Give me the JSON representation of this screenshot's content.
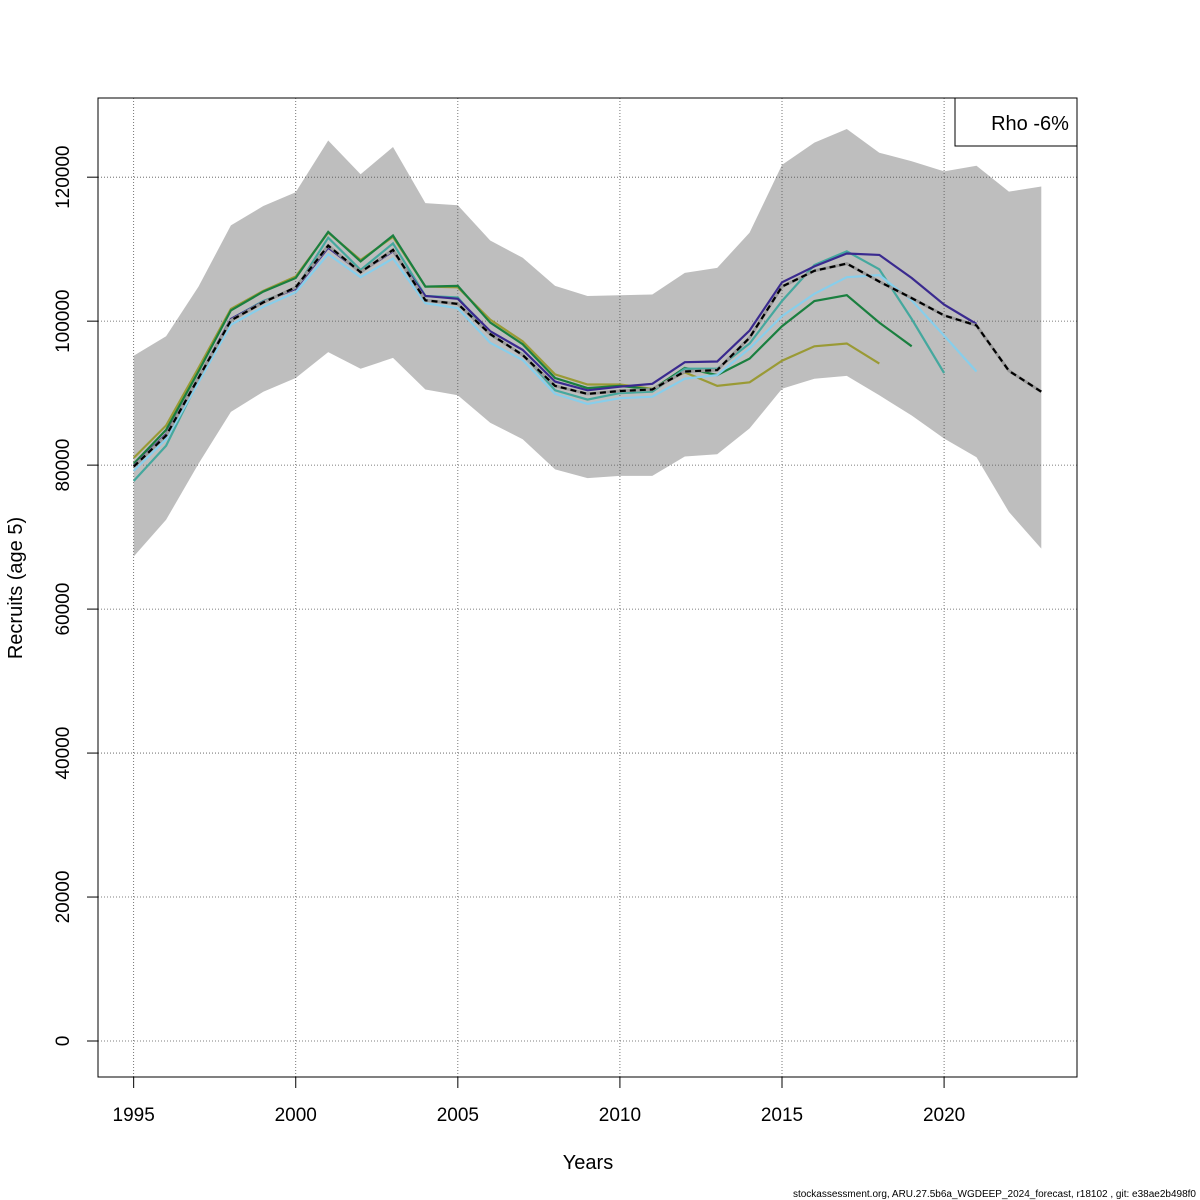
{
  "chart_data": {
    "type": "line",
    "xlabel": "Years",
    "ylabel": "Recruits (age 5)",
    "xlim": [
      1993.9,
      2024.1
    ],
    "ylim": [
      -5000,
      131000
    ],
    "x_ticks": [
      1995,
      2000,
      2005,
      2010,
      2015,
      2020
    ],
    "y_ticks": [
      0,
      20000,
      40000,
      60000,
      80000,
      100000,
      120000
    ],
    "grid": true,
    "legend": {
      "position": "top-right",
      "text": "Rho -6%"
    },
    "footer": "stockassessment.org, ARU.27.5b6a_WGDEEP_2024_forecast, r18102 , git: e38ae2b498f0",
    "ci_band": {
      "color": "#bebebe",
      "x": [
        1995,
        1996,
        1997,
        1998,
        1999,
        2000,
        2001,
        2002,
        2003,
        2004,
        2005,
        2006,
        2007,
        2008,
        2009,
        2010,
        2011,
        2012,
        2013,
        2014,
        2015,
        2016,
        2017,
        2018,
        2019,
        2020,
        2021,
        2022,
        2023
      ],
      "upper": [
        95200,
        97900,
        104800,
        113300,
        116000,
        117900,
        125100,
        120400,
        124200,
        116400,
        116100,
        111200,
        108800,
        104900,
        103500,
        103600,
        103700,
        106700,
        107400,
        112300,
        121700,
        124800,
        126700,
        123400,
        122200,
        120800,
        121600,
        118000,
        118700
      ],
      "lower": [
        67300,
        72400,
        80200,
        87400,
        90200,
        92100,
        95700,
        93400,
        94900,
        90500,
        89700,
        85900,
        83600,
        79400,
        78200,
        78500,
        78500,
        81200,
        81500,
        85100,
        90600,
        92000,
        92400,
        89700,
        86900,
        83700,
        81100,
        73500,
        68400
      ]
    },
    "series": [
      {
        "color": "#000000",
        "dashed": true,
        "x": [
          1995,
          1996,
          1997,
          1998,
          1999,
          2000,
          2001,
          2002,
          2003,
          2004,
          2005,
          2006,
          2007,
          2008,
          2009,
          2010,
          2011,
          2012,
          2013,
          2014,
          2015,
          2016,
          2017,
          2018,
          2019,
          2020,
          2021,
          2022,
          2023
        ],
        "values": [
          79800,
          84100,
          92100,
          100100,
          102600,
          104700,
          110500,
          106800,
          109900,
          102900,
          102400,
          98200,
          95300,
          91000,
          89900,
          90300,
          90500,
          93000,
          93200,
          97700,
          104800,
          107000,
          108000,
          105500,
          103200,
          100800,
          99400,
          93100,
          90200
        ]
      },
      {
        "color": "#9a9a35",
        "x": [
          1995,
          1996,
          1997,
          1998,
          1999,
          2000,
          2001,
          2002,
          2003,
          2004,
          2005,
          2006,
          2007,
          2008,
          2009,
          2010,
          2011,
          2012,
          2013,
          2014,
          2015,
          2016,
          2017,
          2018
        ],
        "values": [
          81000,
          85500,
          93500,
          101700,
          104200,
          106200,
          112300,
          108500,
          111700,
          104800,
          104700,
          100200,
          97200,
          92600,
          91200,
          91200,
          90600,
          92900,
          91000,
          91500,
          94500,
          96500,
          96900,
          94100
        ]
      },
      {
        "color": "#1a7f3f",
        "x": [
          1995,
          1996,
          1997,
          1998,
          1999,
          2000,
          2001,
          2002,
          2003,
          2004,
          2005,
          2006,
          2007,
          2008,
          2009,
          2010,
          2011,
          2012,
          2013,
          2014,
          2015,
          2016,
          2017,
          2018,
          2019
        ],
        "values": [
          80200,
          84900,
          93000,
          101500,
          104100,
          106000,
          112400,
          108300,
          111900,
          104800,
          104900,
          99800,
          96800,
          92100,
          90700,
          91000,
          90500,
          93500,
          92500,
          94800,
          99300,
          102800,
          103600,
          99800,
          96500
        ]
      },
      {
        "color": "#45a89e",
        "x": [
          1995,
          1996,
          1997,
          1998,
          1999,
          2000,
          2001,
          2002,
          2003,
          2004,
          2005,
          2006,
          2007,
          2008,
          2009,
          2010,
          2011,
          2012,
          2013,
          2014,
          2015,
          2016,
          2017,
          2018,
          2019,
          2020
        ],
        "values": [
          77800,
          82700,
          91800,
          100300,
          102800,
          104500,
          111600,
          107100,
          110800,
          103500,
          103300,
          98100,
          95400,
          90400,
          89100,
          90000,
          90200,
          93400,
          93400,
          96900,
          102800,
          107800,
          109700,
          107200,
          100300,
          92800
        ]
      },
      {
        "color": "#87ceeb",
        "x": [
          1995,
          1996,
          1997,
          1998,
          1999,
          2000,
          2001,
          2002,
          2003,
          2004,
          2005,
          2006,
          2007,
          2008,
          2009,
          2010,
          2011,
          2012,
          2013,
          2014,
          2015,
          2016,
          2017,
          2018,
          2019,
          2020,
          2021
        ],
        "values": [
          79200,
          83600,
          91500,
          99500,
          102000,
          104000,
          109300,
          106100,
          108700,
          102500,
          101800,
          97000,
          94600,
          89900,
          88500,
          89300,
          89500,
          92000,
          92500,
          96200,
          100700,
          103800,
          106100,
          106400,
          102900,
          98000,
          93000
        ]
      },
      {
        "color": "#3a2a8f",
        "x": [
          1995,
          1996,
          1997,
          1998,
          1999,
          2000,
          2001,
          2002,
          2003,
          2004,
          2005,
          2006,
          2007,
          2008,
          2009,
          2010,
          2011,
          2012,
          2013,
          2014,
          2015,
          2016,
          2017,
          2018,
          2019,
          2020,
          2021
        ],
        "values": [
          79900,
          84300,
          92200,
          100300,
          102700,
          104500,
          110200,
          106800,
          109700,
          103500,
          103100,
          98600,
          96000,
          91600,
          90400,
          90900,
          91300,
          94300,
          94400,
          98700,
          105400,
          107600,
          109400,
          109200,
          106000,
          102300,
          99600
        ]
      }
    ]
  }
}
